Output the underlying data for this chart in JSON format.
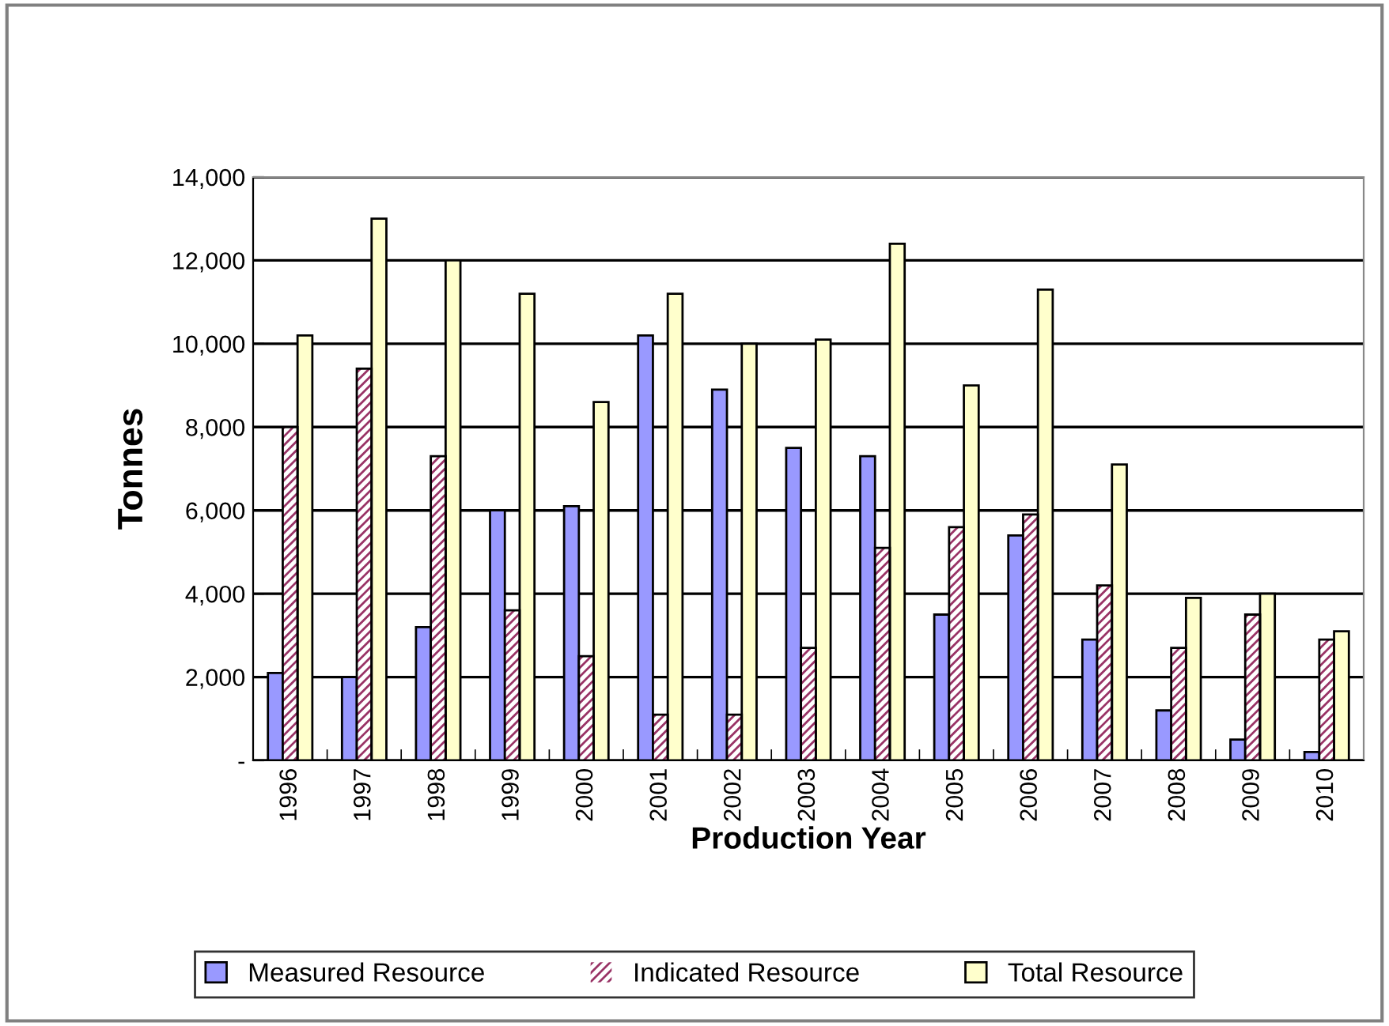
{
  "chart_data": {
    "type": "bar",
    "xlabel": "Production Year",
    "ylabel": "Tonnes",
    "categories": [
      "1996",
      "1997",
      "1998",
      "1999",
      "2000",
      "2001",
      "2002",
      "2003",
      "2004",
      "2005",
      "2006",
      "2007",
      "2008",
      "2009",
      "2010"
    ],
    "series": [
      {
        "name": "Measured Resource",
        "color": "#9999ff",
        "values": [
          2100,
          2000,
          3200,
          6000,
          6100,
          10200,
          8900,
          7500,
          7300,
          3500,
          5400,
          2900,
          1200,
          500,
          200
        ]
      },
      {
        "name": "Indicated Resource",
        "color": "#993366",
        "values": [
          8000,
          9400,
          7300,
          3600,
          2500,
          1100,
          1100,
          2700,
          5100,
          5600,
          5900,
          4200,
          2700,
          3500,
          2900
        ]
      },
      {
        "name": "Total Resource",
        "color": "#ffffcc",
        "values": [
          10200,
          13000,
          12000,
          11200,
          8600,
          11200,
          10000,
          10100,
          12400,
          9000,
          11300,
          7100,
          3900,
          4000,
          3100
        ]
      }
    ],
    "ylim": [
      0,
      14000
    ],
    "yticks": [
      {
        "value": 0,
        "label": "-"
      },
      {
        "value": 2000,
        "label": "2,000"
      },
      {
        "value": 4000,
        "label": "4,000"
      },
      {
        "value": 6000,
        "label": "6,000"
      },
      {
        "value": 8000,
        "label": "8,000"
      },
      {
        "value": 10000,
        "label": "10,000"
      },
      {
        "value": 12000,
        "label": "12,000"
      },
      {
        "value": 14000,
        "label": "14,000"
      }
    ],
    "grid": "y",
    "legend": "bottom"
  }
}
